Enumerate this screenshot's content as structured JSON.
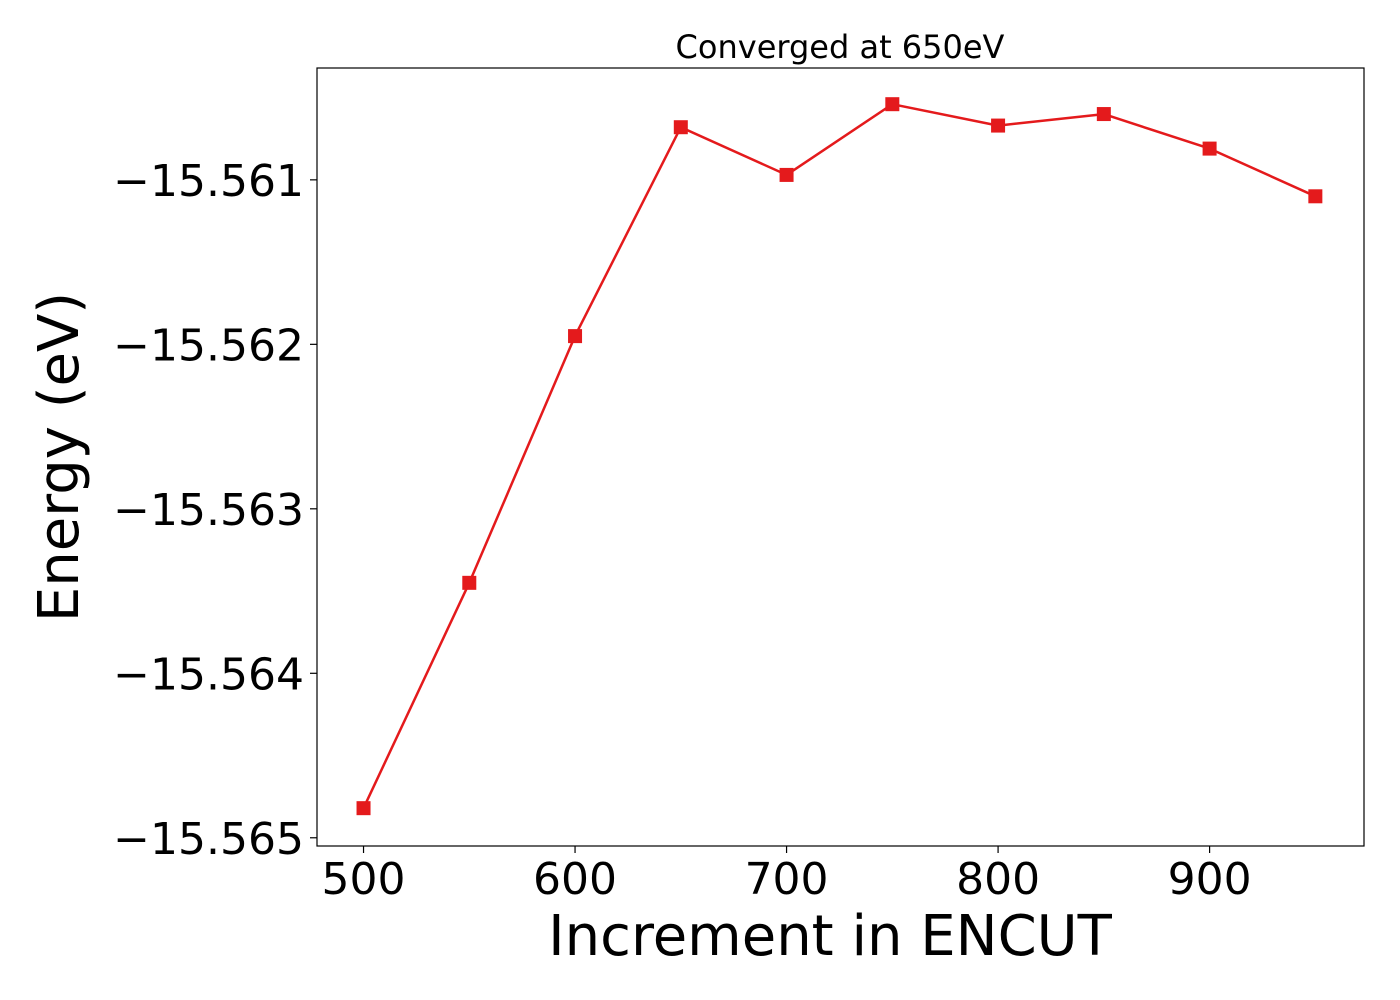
{
  "chart_data": {
    "type": "line",
    "title": "Converged at 650eV",
    "xlabel": "Increment in ENCUT",
    "ylabel": "Energy (eV)",
    "xlim": [
      478,
      973
    ],
    "ylim": [
      -15.56505,
      -15.56032
    ],
    "xticks": [
      500,
      600,
      700,
      800,
      900
    ],
    "xtick_labels": [
      "500",
      "600",
      "700",
      "800",
      "900"
    ],
    "yticks": [
      -15.561,
      -15.562,
      -15.563,
      -15.564,
      -15.565
    ],
    "ytick_labels": [
      "−15.561",
      "−15.562",
      "−15.563",
      "−15.564",
      "−15.565"
    ],
    "grid": false,
    "series": [
      {
        "color": "#e41a1c",
        "marker": "square",
        "x": [
          500,
          550,
          600,
          650,
          700,
          750,
          800,
          850,
          900,
          950
        ],
        "y": [
          -15.56482,
          -15.56345,
          -15.56195,
          -15.56068,
          -15.56097,
          -15.56054,
          -15.56067,
          -15.5606,
          -15.56081,
          -15.5611
        ]
      }
    ]
  }
}
